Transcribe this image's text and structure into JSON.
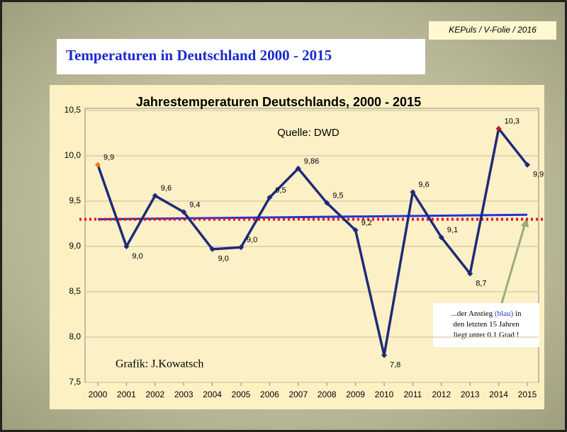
{
  "slide_title": "Temperaturen in Deutschland 2000 - 2015",
  "tag": "KEPuls / V-Folie / 2016",
  "chart_data": {
    "type": "line",
    "title": "Jahrestemperaturen Deutschlands, 2000 - 2015",
    "source": "Quelle: DWD",
    "credit": "Grafik: J.Kowatsch",
    "annotation": [
      [
        "...der Anstieg ",
        "(blau)",
        " in"
      ],
      [
        "den letzten 15 Jahren"
      ],
      [
        "liegt unter 0.1 Grad !"
      ]
    ],
    "categories": [
      "2000",
      "2001",
      "2002",
      "2003",
      "2004",
      "2005",
      "2006",
      "2007",
      "2008",
      "2009",
      "2010",
      "2011",
      "2012",
      "2013",
      "2014",
      "2015"
    ],
    "series": [
      {
        "color": "#1f2a7a",
        "values": [
          9.9,
          9.0,
          9.56,
          9.38,
          8.97,
          8.99,
          9.54,
          9.86,
          9.48,
          9.18,
          7.8,
          9.6,
          9.1,
          8.7,
          10.3,
          9.9
        ],
        "value_labels": [
          "9,9",
          "9,0",
          "9,6",
          "9,4",
          "9,0",
          "9,0",
          "9,5",
          "9,86",
          "9,5",
          "9,2",
          "7,8",
          "9,6",
          "9,1",
          "8,7",
          "10,3",
          "9,9"
        ],
        "marker_colors": [
          "#f07820",
          "#1f2a7a",
          "#1f2a7a",
          "#1f2a7a",
          "#1f2a7a",
          "#1f2a7a",
          "#1f2a7a",
          "#1f2a7a",
          "#1f2a7a",
          "#1f2a7a",
          "#1f2a7a",
          "#1f2a7a",
          "#1f2a7a",
          "#1f2a7a",
          "#c01818",
          "#1f2a7a"
        ]
      }
    ],
    "trend": {
      "color": "#2233dd",
      "values": [
        9.3,
        9.35
      ]
    },
    "mean": {
      "color": "#ee1111",
      "value": 9.3
    },
    "ylim": [
      7.5,
      10.5
    ],
    "yticks": [
      {
        "value": 7.5,
        "label": "7,5"
      },
      {
        "value": 8.0,
        "label": "8,0"
      },
      {
        "value": 8.5,
        "label": "8,5"
      },
      {
        "value": 9.0,
        "label": "9,0"
      },
      {
        "value": 9.5,
        "label": "9,5"
      },
      {
        "value": 10.0,
        "label": "10,0"
      },
      {
        "value": 10.5,
        "label": "10,5"
      }
    ],
    "grid": true
  }
}
